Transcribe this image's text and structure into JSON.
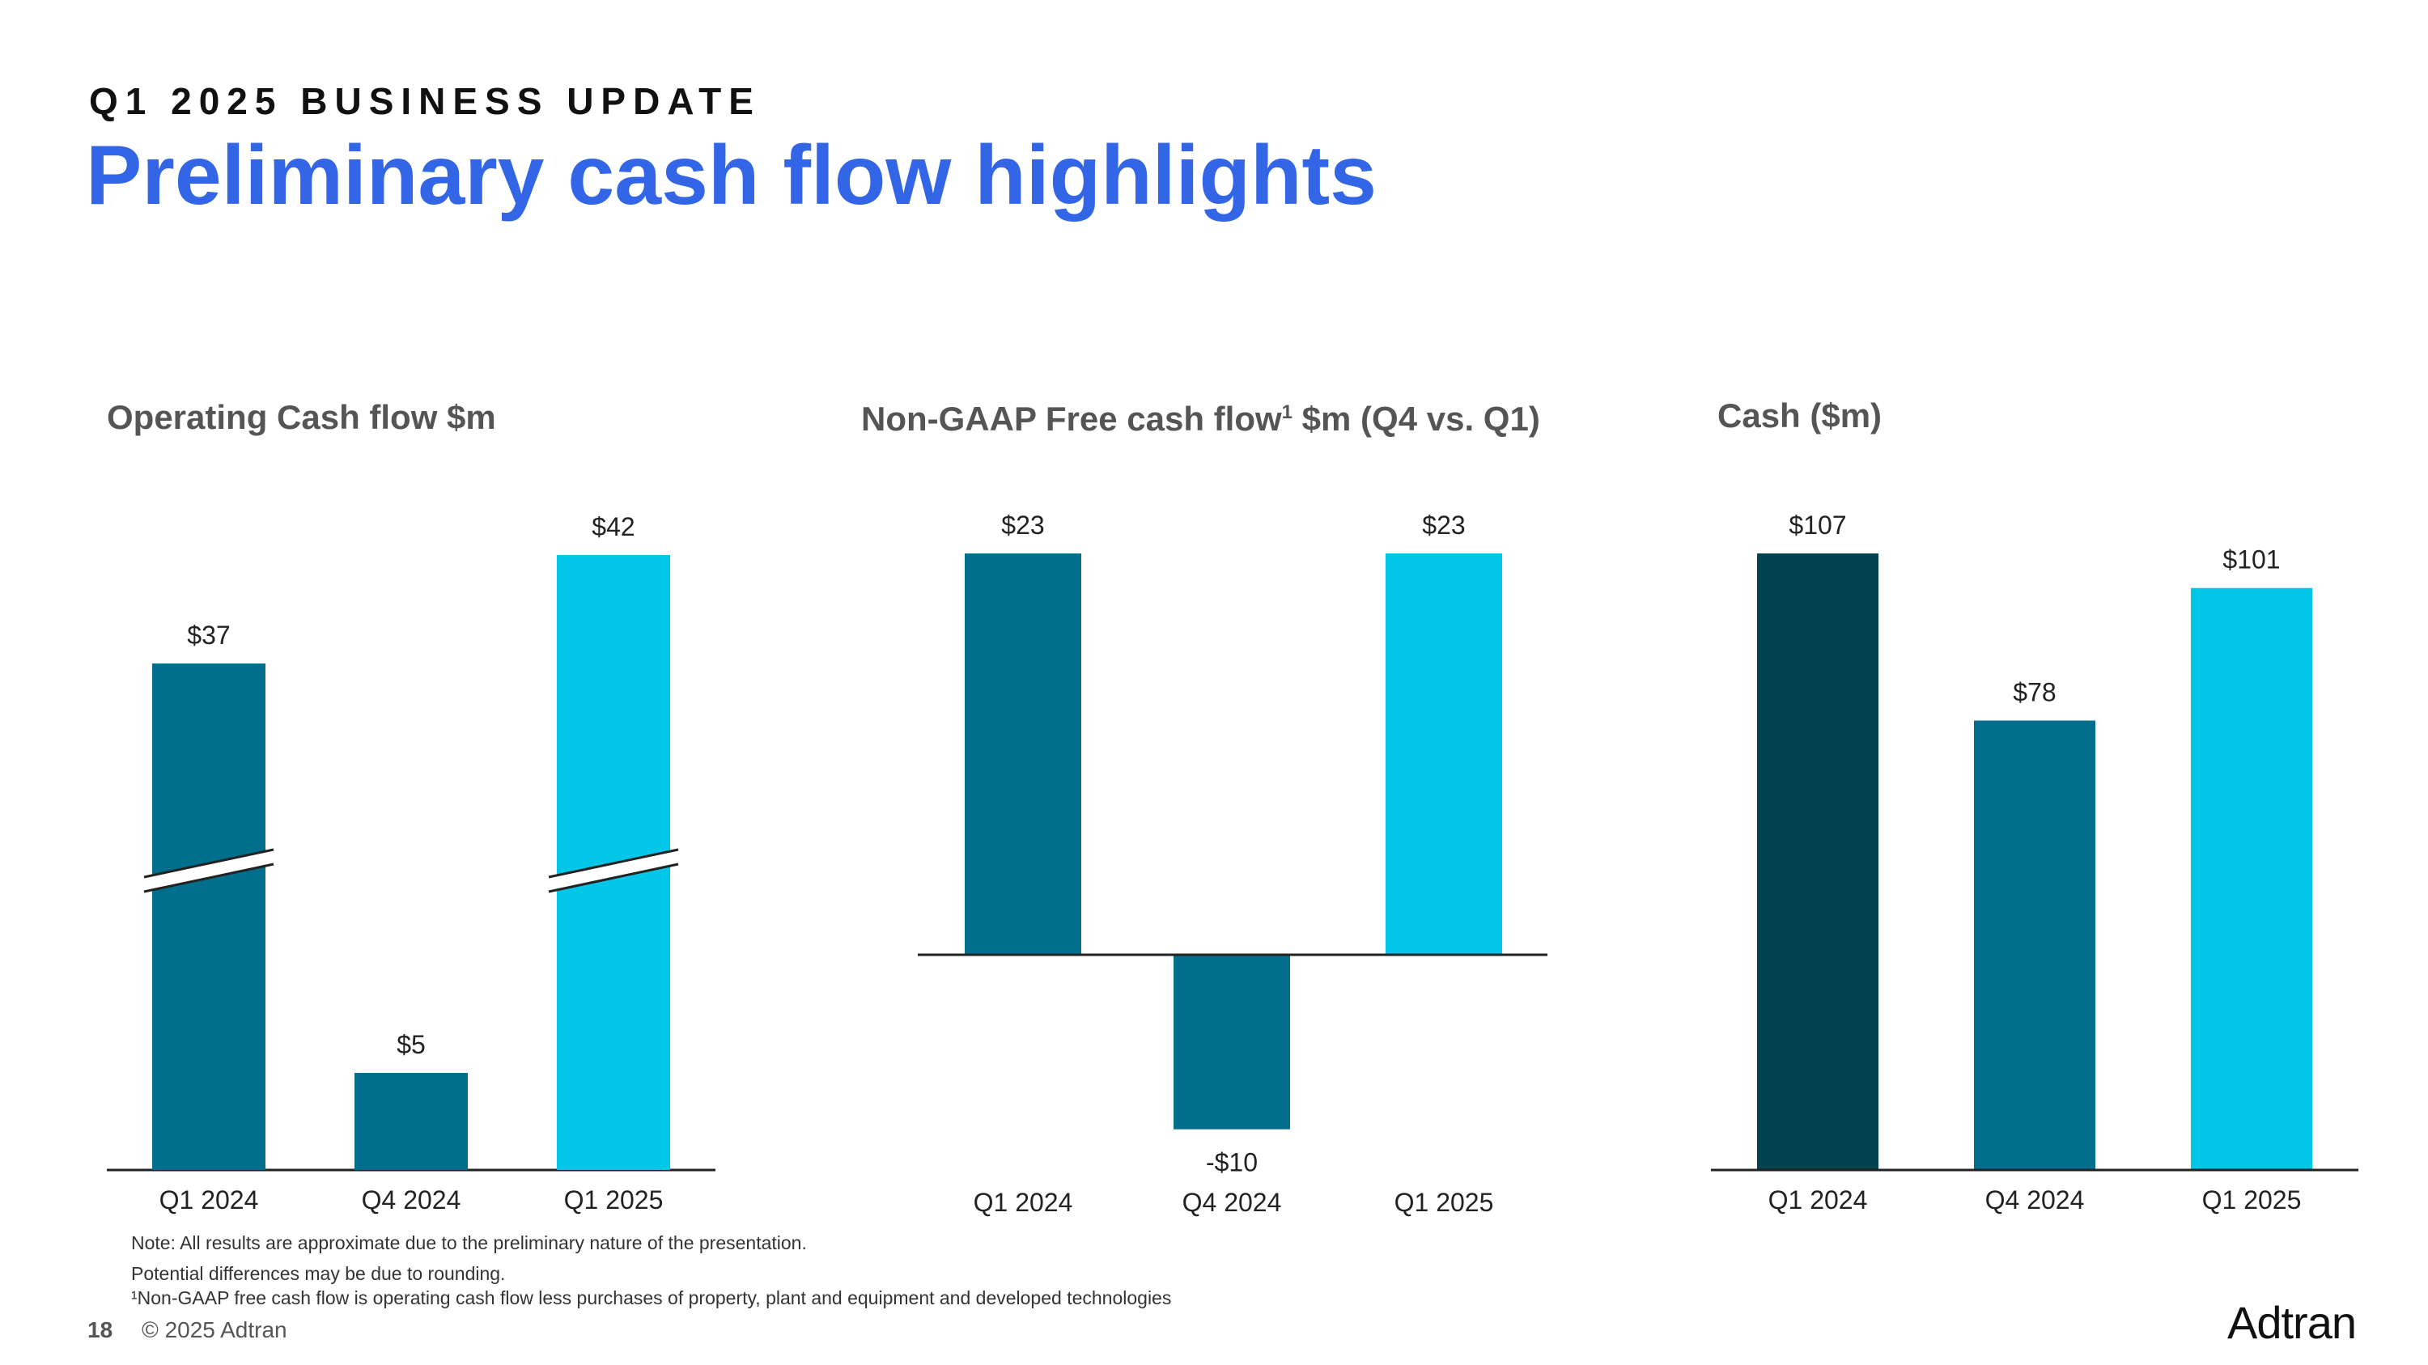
{
  "header": {
    "eyebrow": "Q1 2025 BUSINESS UPDATE",
    "title": "Preliminary cash flow highlights"
  },
  "colors": {
    "title": "#3366e6",
    "dark_teal": "#02434f",
    "teal": "#006e8c",
    "cyan": "#00c6e8"
  },
  "chart_data": [
    {
      "type": "bar",
      "title": "Operating Cash flow $m",
      "categories": [
        "Q1 2024",
        "Q4 2024",
        "Q1 2025"
      ],
      "values": [
        37,
        5,
        42
      ],
      "labels": [
        "$37",
        "$5",
        "$42"
      ],
      "axis_break": true
    },
    {
      "type": "bar",
      "title": "Non-GAAP Free cash flow",
      "title_sup": "1",
      "title_suffix": " $m (Q4 vs. Q1)",
      "categories": [
        "Q1 2024",
        "Q4 2024",
        "Q1 2025"
      ],
      "values": [
        23,
        -10,
        23
      ],
      "labels": [
        "$23",
        "-$10",
        "$23"
      ]
    },
    {
      "type": "bar",
      "title": "Cash ($m)",
      "categories": [
        "Q1 2024",
        "Q4 2024",
        "Q1 2025"
      ],
      "values": [
        107,
        78,
        101
      ],
      "labels": [
        "$107",
        "$78",
        "$101"
      ]
    }
  ],
  "notes": [
    "Note: All results are approximate due to the preliminary nature of the presentation.",
    "Potential differences may be due to rounding.",
    "¹Non-GAAP free cash flow is operating cash flow less purchases of property, plant and equipment and developed technologies"
  ],
  "footer": {
    "page": "18",
    "copyright": "© 2025 Adtran",
    "logo": "Adtran"
  }
}
